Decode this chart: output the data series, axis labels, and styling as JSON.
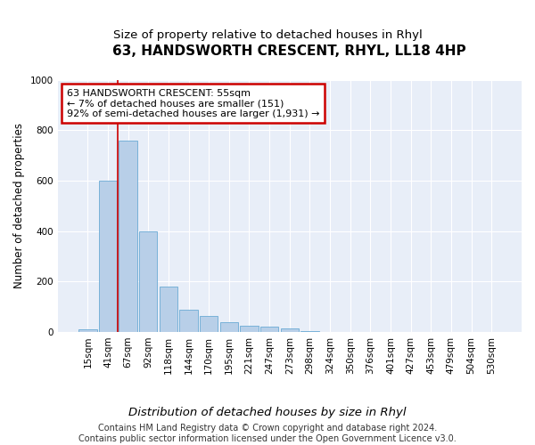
{
  "title": "63, HANDSWORTH CRESCENT, RHYL, LL18 4HP",
  "subtitle": "Size of property relative to detached houses in Rhyl",
  "xlabel_dist": "Distribution of detached houses by size in Rhyl",
  "ylabel": "Number of detached properties",
  "footnote": "Contains HM Land Registry data © Crown copyright and database right 2024.\nContains public sector information licensed under the Open Government Licence v3.0.",
  "bar_labels": [
    "15sqm",
    "41sqm",
    "67sqm",
    "92sqm",
    "118sqm",
    "144sqm",
    "170sqm",
    "195sqm",
    "221sqm",
    "247sqm",
    "273sqm",
    "298sqm",
    "324sqm",
    "350sqm",
    "376sqm",
    "401sqm",
    "427sqm",
    "453sqm",
    "479sqm",
    "504sqm",
    "530sqm"
  ],
  "bar_values": [
    10,
    600,
    760,
    400,
    180,
    90,
    65,
    40,
    25,
    20,
    15,
    5,
    0,
    0,
    0,
    0,
    0,
    0,
    0,
    0,
    0
  ],
  "bar_color": "#b8cfe8",
  "bar_edge_color": "#6aaad4",
  "annotation_line1": "63 HANDSWORTH CRESCENT: 55sqm",
  "annotation_line2": "← 7% of detached houses are smaller (151)",
  "annotation_line3": "92% of semi-detached houses are larger (1,931) →",
  "annotation_box_facecolor": "#ffffff",
  "annotation_box_edgecolor": "#cc0000",
  "redline_xindex": 1.5,
  "ylim_min": 0,
  "ylim_max": 1000,
  "yticks": [
    0,
    200,
    400,
    600,
    800,
    1000
  ],
  "plot_bg_color": "#e8eef8",
  "grid_color": "#ffffff",
  "title_fontsize": 11,
  "subtitle_fontsize": 9.5,
  "tick_fontsize": 7.5,
  "ylabel_fontsize": 8.5,
  "xlabel_fontsize": 9.5,
  "annot_fontsize": 8,
  "footnote_fontsize": 7
}
